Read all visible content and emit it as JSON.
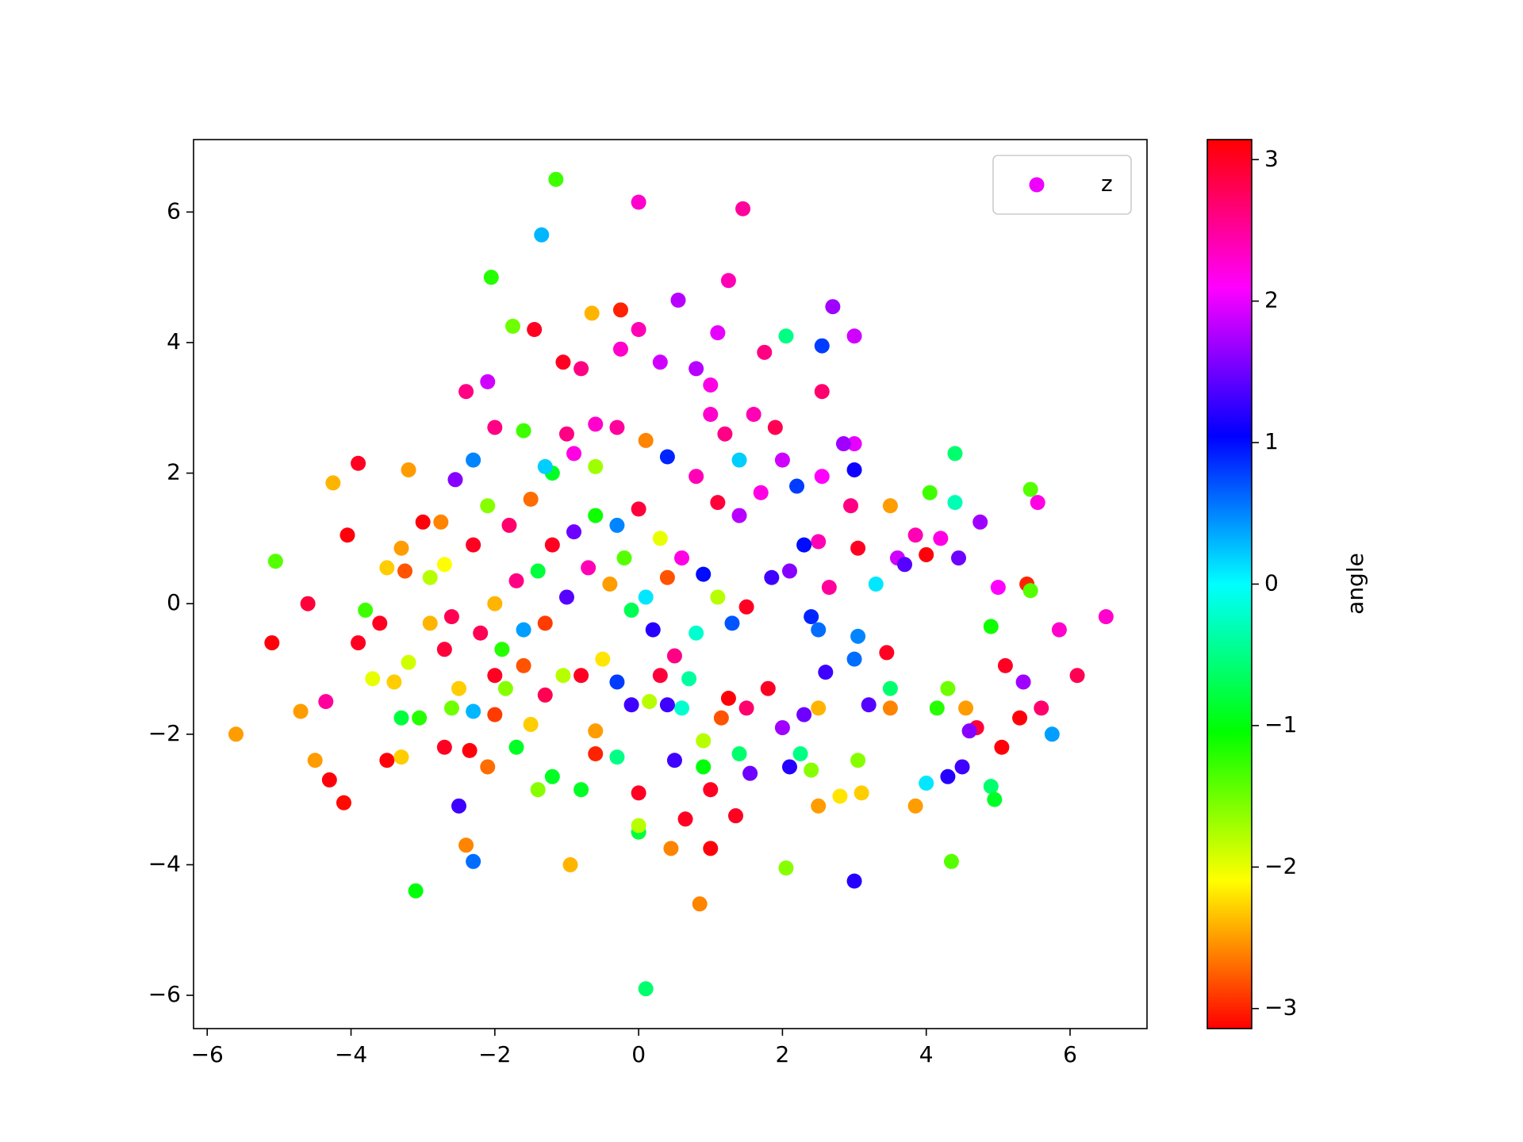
{
  "chart_data": {
    "type": "scatter",
    "colormap": "hsv",
    "colorbar_label": "angle",
    "clim": [
      -3.1416,
      3.1416
    ],
    "cticks": [
      {
        "value": -3,
        "label": "−3"
      },
      {
        "value": -2,
        "label": "−2"
      },
      {
        "value": -1,
        "label": "−1"
      },
      0,
      1,
      2,
      3
    ],
    "xlim": [
      -6.19,
      7.07
    ],
    "ylim": [
      -6.51,
      7.11
    ],
    "xticks": [
      {
        "value": -6,
        "label": "−6"
      },
      {
        "value": -4,
        "label": "−4"
      },
      {
        "value": -2,
        "label": "−2"
      },
      0,
      2,
      4,
      6
    ],
    "yticks": [
      {
        "value": -6,
        "label": "−6"
      },
      {
        "value": -4,
        "label": "−4"
      },
      {
        "value": -2,
        "label": "−2"
      },
      0,
      2,
      4,
      6
    ],
    "legend": "upper right",
    "series": [
      {
        "name": "z",
        "color": "#ee00ff",
        "x": [
          -5.6,
          6.5,
          0.1,
          -1.15,
          0.0,
          1.45,
          -1.35,
          -2.05,
          1.25,
          -0.65,
          -0.25,
          0.55,
          2.7,
          3.0,
          -1.75,
          -1.45,
          -3.1,
          -2.3,
          -0.95,
          0.85,
          3.0,
          2.05,
          4.35,
          -4.1,
          -5.1,
          -5.05,
          -4.6,
          6.1,
          5.85,
          5.75,
          5.55,
          5.45,
          -4.25,
          -3.9,
          -3.2,
          -2.55,
          -2.4,
          -2.1,
          2.05,
          2.55,
          2.55,
          1.1,
          0.0,
          -0.25,
          -0.8,
          -1.05,
          0.8,
          1.75,
          1.0,
          0.3,
          -4.5,
          -4.3,
          -4.7,
          -4.35,
          -3.9,
          -3.8,
          -4.05,
          -3.7,
          -3.5,
          -3.3,
          -3.3,
          -3.05,
          -3.3,
          -3.0,
          -2.75,
          -2.9,
          -2.6,
          -2.7,
          -2.5,
          -2.35,
          -2.1,
          -2.4,
          -2.7,
          -2.5,
          -2.0,
          -1.85,
          -1.5,
          -1.4,
          -1.2,
          -0.8,
          -0.6,
          -0.3,
          0.0,
          0.0,
          0.0,
          0.45,
          0.65,
          1.0,
          1.35,
          0.5,
          0.9,
          1.0,
          1.55,
          1.4,
          2.1,
          2.4,
          2.5,
          2.8,
          3.1,
          3.05,
          3.85,
          4.0,
          4.3,
          4.5,
          4.9,
          4.95,
          5.05,
          4.7,
          4.6,
          4.55,
          4.3,
          4.15,
          4.9,
          5.0,
          5.4,
          5.45,
          5.1,
          5.35,
          5.6,
          5.3,
          4.75,
          4.4,
          4.05,
          4.4,
          4.2,
          4.45,
          4.0,
          3.85,
          3.6,
          3.7,
          3.5,
          3.3,
          3.05,
          3.05,
          3.0,
          3.2,
          3.45,
          3.5,
          3.5,
          3.0,
          2.85,
          3.0,
          2.95,
          2.55,
          2.65,
          2.2,
          2.5,
          2.3,
          2.1,
          1.85,
          2.4,
          2.5,
          2.6,
          2.5,
          2.3,
          2.25,
          2.0,
          1.8,
          1.5,
          1.25,
          1.15,
          0.9,
          0.6,
          0.4,
          0.15,
          -0.1,
          -0.3,
          -0.5,
          -0.8,
          -1.05,
          -1.3,
          -1.6,
          -1.9,
          -2.2,
          -2.0,
          -1.7,
          -1.4,
          -1.2,
          -0.9,
          -0.6,
          -0.3,
          0.0,
          0.3,
          0.6,
          0.9,
          1.1,
          1.3,
          1.5,
          0.8,
          0.5,
          0.2,
          -0.1,
          -0.4,
          -0.7,
          -1.0,
          -1.3,
          -1.6,
          -0.2,
          0.1,
          0.4,
          -2.3,
          -2.1,
          -1.8,
          -1.5,
          -1.2,
          -0.9,
          -0.6,
          -0.3,
          0.1,
          0.4,
          0.8,
          1.1,
          1.4,
          1.7,
          1.4,
          1.2,
          1.0,
          1.6,
          1.9,
          2.0,
          -2.3,
          -2.0,
          -1.6,
          -1.3,
          -1.0,
          -0.6,
          -2.7,
          -2.9,
          -3.2,
          -3.4,
          -3.6,
          -3.25,
          -3.5,
          -2.6,
          -2.3,
          -2.0,
          -1.7,
          -0.6,
          0.3,
          0.7
        ],
        "values": [
          -2.0,
          -0.2,
          -5.9,
          6.5,
          6.15,
          6.05,
          5.65,
          5.0,
          4.95,
          4.45,
          4.5,
          4.65,
          4.55,
          4.1,
          4.25,
          4.2,
          -4.4,
          -3.95,
          -4.0,
          -4.6,
          -4.25,
          -4.05,
          -3.95,
          -3.05,
          -0.6,
          0.65,
          0.0,
          -1.1,
          -0.4,
          -2.0,
          1.55,
          1.75,
          1.85,
          2.15,
          2.05,
          1.9,
          3.25,
          3.4,
          4.1,
          3.95,
          3.25,
          4.15,
          4.2,
          3.9,
          3.6,
          3.7,
          3.6,
          3.85,
          3.35,
          3.7,
          -2.4,
          -2.7,
          -1.65,
          -1.5,
          -0.6,
          -0.1,
          1.05,
          -1.15,
          -2.4,
          -2.35,
          -1.75,
          -1.75,
          0.85,
          1.25,
          1.25,
          0.4,
          -0.2,
          -0.7,
          -1.3,
          -2.25,
          -2.5,
          -3.7,
          -2.2,
          -3.1,
          -1.7,
          -1.3,
          -1.85,
          -2.85,
          -2.65,
          -2.85,
          -1.95,
          -2.35,
          -2.9,
          -3.5,
          -3.4,
          -3.75,
          -3.3,
          -3.75,
          -3.25,
          -2.4,
          -2.5,
          -2.85,
          -2.6,
          -2.3,
          -2.5,
          -2.55,
          -3.1,
          -2.95,
          -2.9,
          -2.4,
          -3.1,
          -2.75,
          -2.65,
          -2.5,
          -2.8,
          -3.0,
          -2.2,
          -1.9,
          -1.95,
          -1.6,
          -1.3,
          -1.6,
          -0.35,
          0.25,
          0.3,
          0.2,
          -0.95,
          -1.2,
          -1.6,
          -1.75,
          1.25,
          1.55,
          1.7,
          2.3,
          1.0,
          0.7,
          0.75,
          1.05,
          0.7,
          0.6,
          1.5,
          0.3,
          0.85,
          -0.5,
          -0.85,
          -1.55,
          -0.75,
          -1.6,
          -1.3,
          2.45,
          2.45,
          2.05,
          1.5,
          1.95,
          0.25,
          1.8,
          0.95,
          0.9,
          0.5,
          0.4,
          -0.2,
          -0.4,
          -1.05,
          -1.6,
          -1.7,
          -2.3,
          -1.9,
          -1.3,
          -1.6,
          -1.45,
          -1.75,
          -2.1,
          -1.6,
          -1.55,
          -1.5,
          -1.55,
          -1.2,
          -0.85,
          -1.1,
          -1.1,
          -1.4,
          -0.95,
          -0.7,
          -0.45,
          0.0,
          0.35,
          0.5,
          0.9,
          1.1,
          1.35,
          1.2,
          1.45,
          1.0,
          0.7,
          0.45,
          0.1,
          -0.3,
          -0.05,
          -0.45,
          -0.8,
          -0.4,
          -0.1,
          0.3,
          0.55,
          0.1,
          -0.3,
          -0.4,
          0.7,
          0.1,
          0.4,
          0.9,
          1.5,
          1.2,
          1.6,
          2.0,
          2.3,
          2.1,
          2.7,
          2.5,
          2.25,
          1.95,
          1.55,
          1.35,
          1.7,
          2.2,
          2.6,
          2.9,
          2.9,
          2.7,
          2.2,
          2.2,
          2.7,
          2.65,
          2.1,
          2.6,
          2.75,
          0.6,
          -0.3,
          -0.9,
          -1.2,
          -0.3,
          0.5,
          0.55,
          -1.6,
          -1.65,
          -1.1,
          -2.2,
          -2.3,
          -1.1,
          -1.15
        ],
        "angle": [
          -2.5,
          2.3,
          -0.6,
          -1.3,
          2.3,
          2.5,
          0.3,
          -1.2,
          2.4,
          -2.4,
          -3.0,
          1.8,
          1.7,
          1.9,
          -1.5,
          3.0,
          -1.0,
          0.6,
          -2.4,
          -2.6,
          1.2,
          -1.6,
          -1.4,
          -3.1,
          3.1,
          -1.4,
          2.9,
          2.8,
          2.3,
          0.4,
          2.2,
          -1.4,
          -2.4,
          3.0,
          -2.5,
          1.6,
          2.6,
          1.9,
          -0.5,
          0.8,
          2.7,
          2.0,
          2.4,
          2.3,
          2.6,
          3.0,
          1.8,
          2.6,
          2.2,
          1.9,
          -2.5,
          3.1,
          -2.5,
          2.5,
          3.0,
          -1.3,
          3.1,
          -2.0,
          3.1,
          -2.3,
          -0.8,
          -1.2,
          -2.5,
          3.1,
          -2.6,
          -1.8,
          2.8,
          2.9,
          -2.3,
          3.1,
          -2.7,
          -2.6,
          3.0,
          1.3,
          -2.9,
          -1.6,
          -2.3,
          -1.6,
          -0.9,
          -0.9,
          -2.5,
          -0.5,
          3.0,
          -0.8,
          -1.8,
          -2.6,
          3.0,
          3.1,
          3.0,
          1.3,
          -1.0,
          3.0,
          1.5,
          -0.6,
          1.2,
          -1.6,
          -2.5,
          -2.2,
          -2.3,
          -1.6,
          -2.5,
          0.1,
          1.2,
          1.3,
          -0.6,
          -0.9,
          3.1,
          2.9,
          1.6,
          -2.5,
          -1.5,
          -1.2,
          -1.1,
          2.1,
          -3.0,
          -1.4,
          3.0,
          1.7,
          2.7,
          3.1,
          1.7,
          -0.3,
          -1.3,
          -0.6,
          2.2,
          1.5,
          3.1,
          2.4,
          1.9,
          1.4,
          -2.5,
          0.1,
          3.0,
          0.5,
          0.6,
          1.4,
          3.0,
          -2.6,
          -0.6,
          2.0,
          1.7,
          1.1,
          2.6,
          2.1,
          2.5,
          0.8,
          2.4,
          1.0,
          1.6,
          1.3,
          0.9,
          0.6,
          1.3,
          -2.4,
          1.5,
          -0.5,
          1.7,
          3.0,
          2.7,
          3.1,
          -2.8,
          -1.8,
          -0.2,
          1.3,
          -1.8,
          1.3,
          0.8,
          -2.2,
          3.0,
          -1.8,
          2.8,
          -2.8,
          -1.2,
          2.8,
          -2.4,
          2.6,
          -0.8,
          3.0,
          1.5,
          -1.1,
          0.5,
          2.9,
          -2.0,
          2.2,
          1.0,
          -1.8,
          0.7,
          3.0,
          -0.2,
          2.6,
          1.2,
          -0.7,
          -2.5,
          2.4,
          1.4,
          -2.9,
          0.4,
          -1.4,
          0.1,
          -2.8,
          3.0,
          -1.6,
          2.7,
          -2.7,
          -0.9,
          2.2,
          -1.7,
          2.5,
          -2.6,
          0.9,
          2.4,
          2.9,
          1.8,
          2.2,
          0.2,
          2.6,
          2.3,
          2.4,
          2.8,
          1.9,
          0.5,
          2.6,
          -1.3,
          0.2,
          2.6,
          2.3,
          -2.1,
          -2.4,
          -1.9,
          -2.3,
          3.0,
          -2.8,
          -2.3,
          -1.5,
          0.3,
          3.0,
          -0.9,
          -3.0,
          2.9,
          -0.4
        ]
      }
    ]
  }
}
